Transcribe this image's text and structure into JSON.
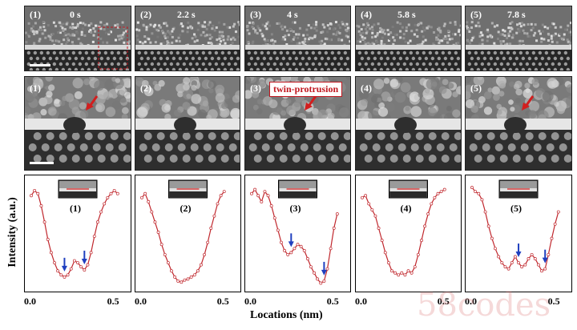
{
  "top_row": [
    {
      "num": "(1)",
      "time": "0 s"
    },
    {
      "num": "(2)",
      "time": "2.2 s"
    },
    {
      "num": "(3)",
      "time": "4 s"
    },
    {
      "num": "(4)",
      "time": "5.8 s"
    },
    {
      "num": "(5)",
      "time": "7.8 s"
    }
  ],
  "mid_row": [
    {
      "num": "(1)"
    },
    {
      "num": "(2)"
    },
    {
      "num": "(3)"
    },
    {
      "num": "(4)"
    },
    {
      "num": "(5)"
    }
  ],
  "annotation": "twin-protrusion",
  "plot_tags": [
    "(1)",
    "(2)",
    "(3)",
    "(4)",
    "(5)"
  ],
  "chart_data": {
    "type": "line",
    "ylabel": "Intensity (a.u.)",
    "xlabel": "Locations (nm)",
    "xticks": [
      "0.0",
      "0.5"
    ],
    "xlim": [
      0,
      0.55
    ],
    "ylim": [
      0,
      1
    ],
    "series": [
      {
        "x": [
          0.0,
          0.02,
          0.04,
          0.06,
          0.08,
          0.1,
          0.12,
          0.14,
          0.16,
          0.18,
          0.2,
          0.22,
          0.24,
          0.26,
          0.28,
          0.3,
          0.32,
          0.34,
          0.36,
          0.38,
          0.4,
          0.42,
          0.44,
          0.46,
          0.48,
          0.5,
          0.52
        ],
        "y": [
          0.88,
          0.93,
          0.9,
          0.78,
          0.62,
          0.45,
          0.32,
          0.22,
          0.14,
          0.1,
          0.08,
          0.1,
          0.16,
          0.24,
          0.22,
          0.18,
          0.15,
          0.2,
          0.32,
          0.48,
          0.62,
          0.72,
          0.8,
          0.86,
          0.9,
          0.93,
          0.9
        ],
        "arrows": [
          0.2,
          0.32
        ]
      },
      {
        "x": [
          0.0,
          0.02,
          0.04,
          0.06,
          0.08,
          0.1,
          0.12,
          0.14,
          0.16,
          0.18,
          0.2,
          0.22,
          0.24,
          0.26,
          0.28,
          0.3,
          0.32,
          0.34,
          0.36,
          0.38,
          0.4,
          0.42,
          0.44,
          0.46,
          0.48,
          0.5
        ],
        "y": [
          0.86,
          0.9,
          0.82,
          0.72,
          0.62,
          0.52,
          0.4,
          0.3,
          0.22,
          0.14,
          0.08,
          0.04,
          0.03,
          0.05,
          0.06,
          0.08,
          0.1,
          0.14,
          0.2,
          0.3,
          0.42,
          0.56,
          0.68,
          0.8,
          0.88,
          0.92
        ],
        "arrows": []
      },
      {
        "x": [
          0.0,
          0.02,
          0.04,
          0.06,
          0.08,
          0.1,
          0.12,
          0.14,
          0.16,
          0.18,
          0.2,
          0.22,
          0.24,
          0.26,
          0.28,
          0.3,
          0.32,
          0.34,
          0.36,
          0.38,
          0.4,
          0.42,
          0.44,
          0.46,
          0.48,
          0.5,
          0.52
        ],
        "y": [
          0.9,
          0.94,
          0.88,
          0.82,
          0.92,
          0.88,
          0.78,
          0.66,
          0.54,
          0.42,
          0.34,
          0.3,
          0.32,
          0.36,
          0.4,
          0.38,
          0.34,
          0.26,
          0.18,
          0.12,
          0.06,
          0.02,
          0.04,
          0.16,
          0.36,
          0.56,
          0.7
        ],
        "arrows": [
          0.24,
          0.44
        ]
      },
      {
        "x": [
          0.0,
          0.02,
          0.04,
          0.06,
          0.08,
          0.1,
          0.12,
          0.14,
          0.16,
          0.18,
          0.2,
          0.22,
          0.24,
          0.26,
          0.28,
          0.3,
          0.32,
          0.34,
          0.36,
          0.38,
          0.4,
          0.42,
          0.44,
          0.46,
          0.48,
          0.5
        ],
        "y": [
          0.86,
          0.88,
          0.8,
          0.74,
          0.68,
          0.56,
          0.44,
          0.32,
          0.22,
          0.14,
          0.12,
          0.1,
          0.12,
          0.1,
          0.14,
          0.12,
          0.18,
          0.3,
          0.44,
          0.58,
          0.7,
          0.8,
          0.86,
          0.9,
          0.92,
          0.94
        ],
        "arrows": []
      },
      {
        "x": [
          0.0,
          0.02,
          0.04,
          0.06,
          0.08,
          0.1,
          0.12,
          0.14,
          0.16,
          0.18,
          0.2,
          0.22,
          0.24,
          0.26,
          0.28,
          0.3,
          0.32,
          0.34,
          0.36,
          0.38,
          0.4,
          0.42,
          0.44,
          0.46,
          0.48,
          0.5,
          0.52
        ],
        "y": [
          0.96,
          0.92,
          0.9,
          0.84,
          0.72,
          0.58,
          0.46,
          0.36,
          0.28,
          0.22,
          0.18,
          0.16,
          0.22,
          0.28,
          0.22,
          0.18,
          0.2,
          0.26,
          0.3,
          0.26,
          0.2,
          0.14,
          0.16,
          0.3,
          0.46,
          0.6,
          0.72
        ],
        "arrows": [
          0.28,
          0.44
        ]
      }
    ]
  },
  "watermark": "58codes"
}
